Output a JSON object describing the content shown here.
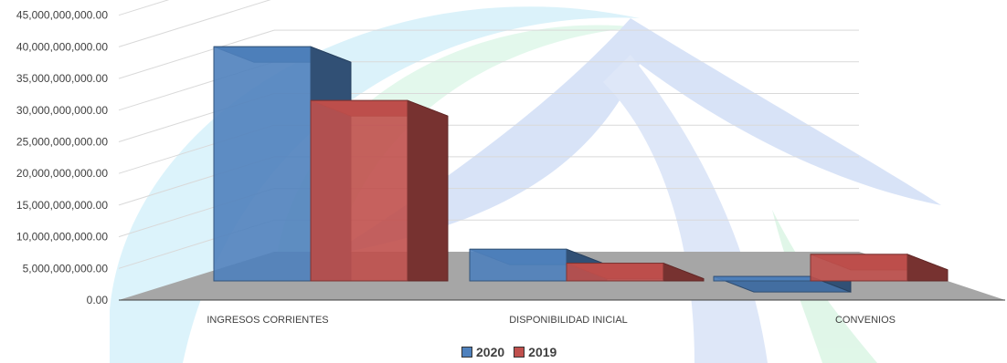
{
  "chart_data": {
    "type": "bar",
    "categories": [
      "INGRESOS CORRIENTES",
      "DISPONIBILIDAD INICIAL",
      "CONVENIOS"
    ],
    "series": [
      {
        "name": "2020",
        "values": [
          37000000000,
          5000000000,
          700000000
        ],
        "color": "#4f81bd"
      },
      {
        "name": "2019",
        "values": [
          28500000000,
          2800000000,
          4200000000
        ],
        "color": "#c0504d"
      }
    ],
    "y_ticks": [
      "0.00",
      "5,000,000,000.00",
      "10,000,000,000.00",
      "15,000,000,000.00",
      "20,000,000,000.00",
      "25,000,000,000.00",
      "30,000,000,000.00",
      "35,000,000,000.00",
      "40,000,000,000.00",
      "45,000,000,000.00"
    ],
    "ylim": [
      0,
      45000000000
    ],
    "grid": true,
    "legend_position": "bottom",
    "style": "3d-clustered-column"
  },
  "legend": {
    "items": [
      "2020",
      "2019"
    ]
  }
}
